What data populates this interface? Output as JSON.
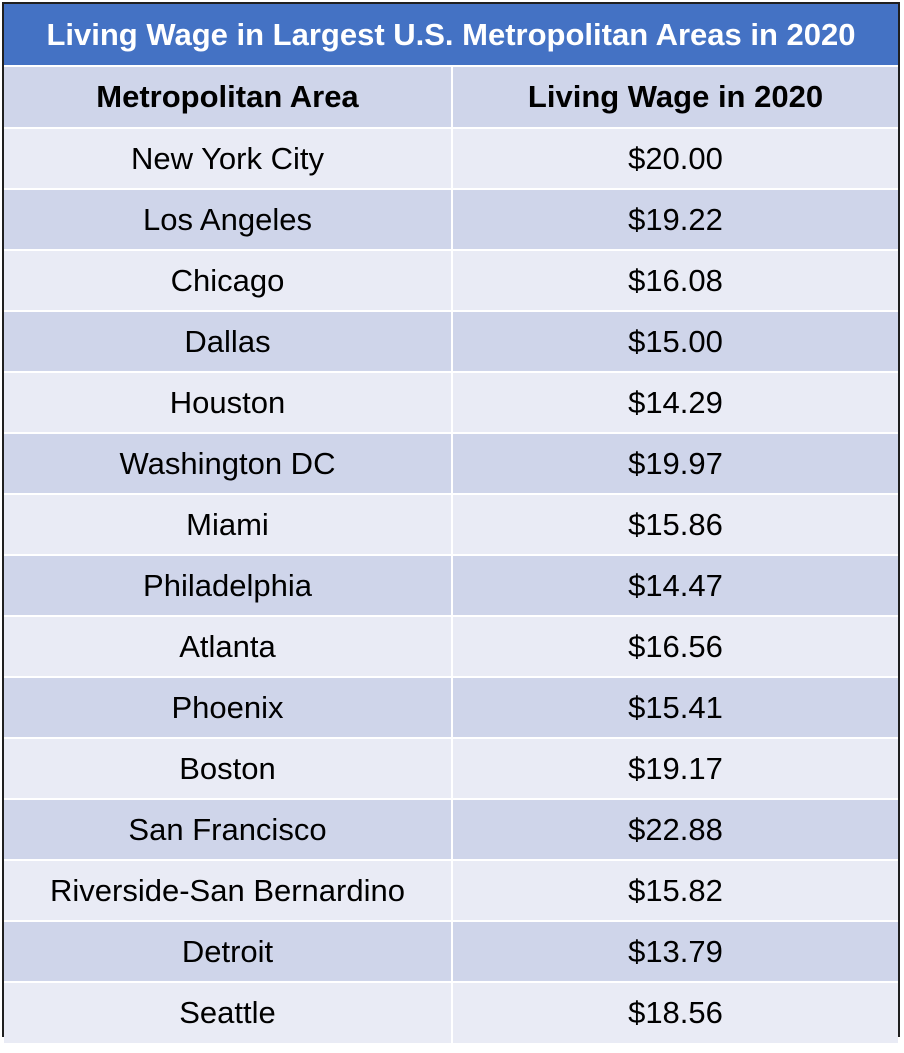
{
  "colors": {
    "title_bg": "#4472c4",
    "title_text": "#ffffff",
    "header_bg": "#cfd5ea",
    "row_light": "#e9ebf5",
    "row_dark": "#cfd5ea"
  },
  "chart_data": {
    "type": "table",
    "title": "Living Wage in Largest U.S. Metropolitan Areas in 2020",
    "columns": [
      "Metropolitan Area",
      "Living Wage in 2020"
    ],
    "rows": [
      {
        "area": "New York City",
        "wage": "$20.00"
      },
      {
        "area": "Los Angeles",
        "wage": "$19.22"
      },
      {
        "area": "Chicago",
        "wage": "$16.08"
      },
      {
        "area": "Dallas",
        "wage": "$15.00"
      },
      {
        "area": "Houston",
        "wage": "$14.29"
      },
      {
        "area": "Washington DC",
        "wage": "$19.97"
      },
      {
        "area": "Miami",
        "wage": "$15.86"
      },
      {
        "area": "Philadelphia",
        "wage": "$14.47"
      },
      {
        "area": "Atlanta",
        "wage": "$16.56"
      },
      {
        "area": "Phoenix",
        "wage": "$15.41"
      },
      {
        "area": "Boston",
        "wage": "$19.17"
      },
      {
        "area": "San Francisco",
        "wage": "$22.88"
      },
      {
        "area": "Riverside-San Bernardino",
        "wage": "$15.82"
      },
      {
        "area": "Detroit",
        "wage": "$13.79"
      },
      {
        "area": "Seattle",
        "wage": "$18.56"
      }
    ]
  }
}
